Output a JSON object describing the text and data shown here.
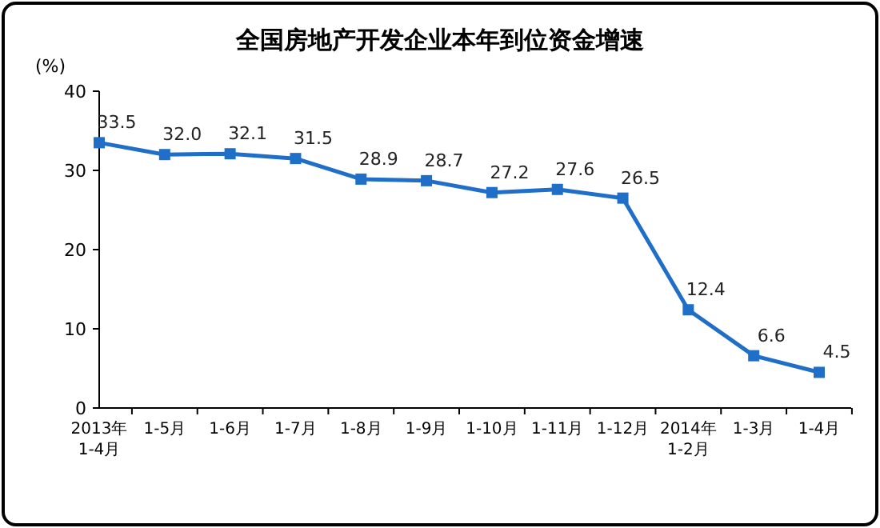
{
  "chart_data": {
    "type": "line",
    "title": "全国房地产开发企业本年到位资金增速",
    "ylabel": "(%)",
    "categories": [
      "2013年 1-4月",
      "1-5月",
      "1-6月",
      "1-7月",
      "1-8月",
      "1-9月",
      "1-10月",
      "1-11月",
      "1-12月",
      "2014年 1-2月",
      "1-3月",
      "1-4月"
    ],
    "series": [
      {
        "color": "#1f6fc8",
        "values": [
          33.5,
          32.0,
          32.1,
          31.5,
          28.9,
          28.7,
          27.2,
          27.6,
          26.5,
          12.4,
          6.6,
          4.5
        ],
        "value_labels": [
          "33.5",
          "32.0",
          "32.1",
          "31.5",
          "28.9",
          "28.7",
          "27.2",
          "27.6",
          "26.5",
          "12.4",
          "6.6",
          "4.5"
        ]
      }
    ],
    "ylim": [
      0,
      40
    ],
    "yticks": [
      0,
      10,
      20,
      30,
      40
    ],
    "marker": "square"
  }
}
